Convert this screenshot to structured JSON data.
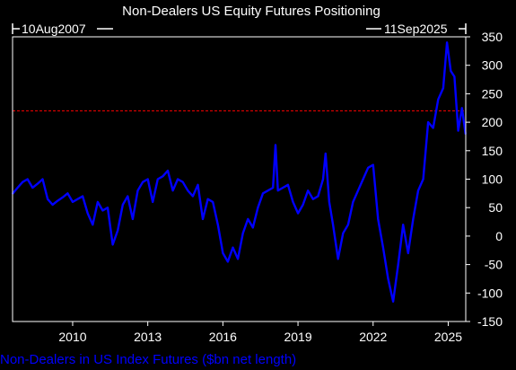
{
  "chart_data": {
    "type": "line",
    "title": "Non-Dealers US Equity Futures Positioning",
    "start_label": "10Aug2007",
    "end_label": "11Sep2025",
    "legend": {
      "position": "bottom-left",
      "entries": [
        {
          "label": "Non-Dealers in US Index Futures ($bn net length)",
          "color": "#0000ff"
        }
      ]
    },
    "xlabel": "",
    "ylabel": "",
    "x_ticks": [
      "2010",
      "2013",
      "2016",
      "2019",
      "2022",
      "2025"
    ],
    "x_tick_values": [
      2010,
      2013,
      2016,
      2019,
      2022,
      2025
    ],
    "y_ticks": [
      "350",
      "300",
      "250",
      "200",
      "150",
      "100",
      "50",
      "0",
      "-50",
      "-100",
      "-150"
    ],
    "y_tick_values": [
      350,
      300,
      250,
      200,
      150,
      100,
      50,
      0,
      -50,
      -100,
      -150
    ],
    "xlim": [
      2007.6,
      2025.7
    ],
    "ylim": [
      -150,
      350
    ],
    "grid": false,
    "reference_line": {
      "value": 220,
      "style": "dashed",
      "color": "#ff0000"
    },
    "colors": {
      "background": "#000000",
      "frame": "#ffffff",
      "text": "#ffffff",
      "series": "#0000ff",
      "legend_text": "#0000ff",
      "reference": "#ff0000"
    },
    "series": [
      {
        "name": "Non-Dealers in US Index Futures ($bn net length)",
        "x": [
          2007.61,
          2007.8,
          2008.0,
          2008.2,
          2008.4,
          2008.6,
          2008.8,
          2009.0,
          2009.2,
          2009.4,
          2009.6,
          2009.8,
          2010.0,
          2010.2,
          2010.4,
          2010.6,
          2010.8,
          2011.0,
          2011.2,
          2011.4,
          2011.6,
          2011.8,
          2012.0,
          2012.2,
          2012.4,
          2012.6,
          2012.8,
          2013.0,
          2013.2,
          2013.4,
          2013.6,
          2013.8,
          2014.0,
          2014.2,
          2014.4,
          2014.6,
          2014.8,
          2015.0,
          2015.2,
          2015.4,
          2015.6,
          2015.8,
          2016.0,
          2016.2,
          2016.4,
          2016.6,
          2016.8,
          2017.0,
          2017.2,
          2017.4,
          2017.6,
          2017.8,
          2018.0,
          2018.1,
          2018.2,
          2018.4,
          2018.6,
          2018.8,
          2019.0,
          2019.2,
          2019.4,
          2019.6,
          2019.8,
          2020.0,
          2020.1,
          2020.25,
          2020.4,
          2020.6,
          2020.8,
          2021.0,
          2021.2,
          2021.4,
          2021.6,
          2021.8,
          2022.0,
          2022.2,
          2022.4,
          2022.6,
          2022.8,
          2023.0,
          2023.2,
          2023.4,
          2023.6,
          2023.8,
          2024.0,
          2024.2,
          2024.4,
          2024.6,
          2024.8,
          2024.95,
          2025.1,
          2025.25,
          2025.4,
          2025.55,
          2025.69
        ],
        "y": [
          75,
          85,
          95,
          100,
          85,
          92,
          100,
          65,
          55,
          62,
          68,
          75,
          60,
          65,
          70,
          40,
          20,
          60,
          45,
          50,
          -15,
          10,
          55,
          70,
          30,
          80,
          95,
          100,
          60,
          100,
          105,
          115,
          80,
          100,
          95,
          80,
          70,
          90,
          30,
          65,
          60,
          20,
          -30,
          -45,
          -20,
          -40,
          5,
          30,
          15,
          50,
          75,
          80,
          85,
          160,
          80,
          85,
          90,
          60,
          40,
          55,
          80,
          65,
          70,
          100,
          145,
          60,
          20,
          -40,
          5,
          20,
          60,
          80,
          100,
          120,
          125,
          30,
          -20,
          -75,
          -115,
          -50,
          20,
          -30,
          30,
          80,
          100,
          200,
          190,
          240,
          260,
          340,
          290,
          280,
          185,
          225,
          180
        ]
      }
    ]
  }
}
